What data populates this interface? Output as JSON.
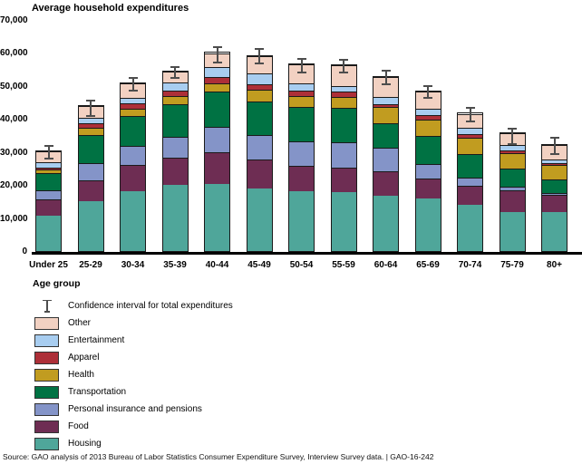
{
  "title": "Average household expenditures",
  "x_axis_label": "Age group",
  "source": "Source: GAO analysis of 2013 Bureau of Labor Statistics Consumer Expenditure Survey, Interview Survey data.  |  GAO-16-242",
  "legend": {
    "ci_label": "Confidence interval for total expenditures",
    "items": [
      {
        "label": "Other",
        "color": "#F2D1C2"
      },
      {
        "label": "Entertainment",
        "color": "#A8CDF0"
      },
      {
        "label": "Apparel",
        "color": "#AD2F38"
      },
      {
        "label": "Health",
        "color": "#C19C20"
      },
      {
        "label": "Transportation",
        "color": "#007243"
      },
      {
        "label": "Personal insurance and pensions",
        "color": "#8494C8"
      },
      {
        "label": "Food",
        "color": "#6E2D53"
      },
      {
        "label": "Housing",
        "color": "#4FA69A"
      }
    ]
  },
  "chart_data": {
    "type": "bar",
    "stacked": true,
    "title": "Average household expenditures",
    "xlabel": "Age group",
    "ylabel": "",
    "ylim": [
      0,
      70000
    ],
    "y_ticks": [
      0,
      10000,
      20000,
      30000,
      40000,
      50000,
      60000,
      70000
    ],
    "y_tick_labels": [
      "0",
      "10,000",
      "20,000",
      "30,000",
      "40,000",
      "50,000",
      "60,000",
      "70,000"
    ],
    "grid": false,
    "legend_position": "bottom-left",
    "categories": [
      "Under 25",
      "25-29",
      "30-34",
      "35-39",
      "40-44",
      "45-49",
      "50-54",
      "55-59",
      "60-64",
      "65-69",
      "70-74",
      "75-79",
      "80+"
    ],
    "series": [
      {
        "name": "Housing",
        "color": "#4FA69A",
        "values": [
          10800,
          15200,
          18200,
          20000,
          20300,
          19000,
          18100,
          17800,
          16700,
          15800,
          14000,
          11800,
          11800
        ]
      },
      {
        "name": "Food",
        "color": "#6E2D53",
        "values": [
          4800,
          6200,
          8000,
          8200,
          9500,
          8800,
          7700,
          7500,
          7400,
          6100,
          5900,
          6500,
          5100
        ]
      },
      {
        "name": "Personal insurance and pensions",
        "color": "#8494C8",
        "values": [
          2700,
          5100,
          5700,
          6300,
          7700,
          7400,
          7400,
          7700,
          7200,
          4400,
          2300,
          1100,
          700
        ]
      },
      {
        "name": "Transportation",
        "color": "#007243",
        "values": [
          5300,
          8600,
          9000,
          9900,
          10700,
          10000,
          10400,
          10400,
          7500,
          8700,
          7200,
          5600,
          4100
        ]
      },
      {
        "name": "Health",
        "color": "#C19C20",
        "values": [
          1000,
          2300,
          2300,
          2500,
          2700,
          3600,
          3400,
          3400,
          4800,
          4900,
          5000,
          4600,
          4300
        ]
      },
      {
        "name": "Apparel",
        "color": "#AD2F38",
        "values": [
          800,
          1400,
          1500,
          1600,
          1800,
          1600,
          1500,
          1400,
          900,
          1200,
          900,
          800,
          700
        ]
      },
      {
        "name": "Entertainment",
        "color": "#A8CDF0",
        "values": [
          1400,
          1700,
          1700,
          2600,
          3100,
          3300,
          2300,
          1800,
          2200,
          2100,
          2000,
          1800,
          1100
        ]
      },
      {
        "name": "Other",
        "color": "#F2D1C2",
        "values": [
          3400,
          3300,
          4400,
          3300,
          4200,
          5400,
          5700,
          6300,
          6100,
          5100,
          4300,
          3400,
          4400
        ]
      }
    ],
    "totals": [
      30200,
      43800,
      50800,
      54400,
      60000,
      59100,
      56500,
      56300,
      52800,
      48300,
      41600,
      35600,
      32200
    ],
    "confidence_intervals": [
      {
        "low": 27900,
        "high": 32500
      },
      {
        "low": 41000,
        "high": 46200
      },
      {
        "low": 48700,
        "high": 52900
      },
      {
        "low": 52400,
        "high": 56400
      },
      {
        "low": 57200,
        "high": 62300
      },
      {
        "low": 56700,
        "high": 61700
      },
      {
        "low": 54200,
        "high": 58800
      },
      {
        "low": 54000,
        "high": 58600
      },
      {
        "low": 50600,
        "high": 55100
      },
      {
        "low": 46300,
        "high": 50600
      },
      {
        "low": 39200,
        "high": 43900
      },
      {
        "low": 32500,
        "high": 37700
      },
      {
        "low": 29500,
        "high": 34800
      }
    ]
  }
}
